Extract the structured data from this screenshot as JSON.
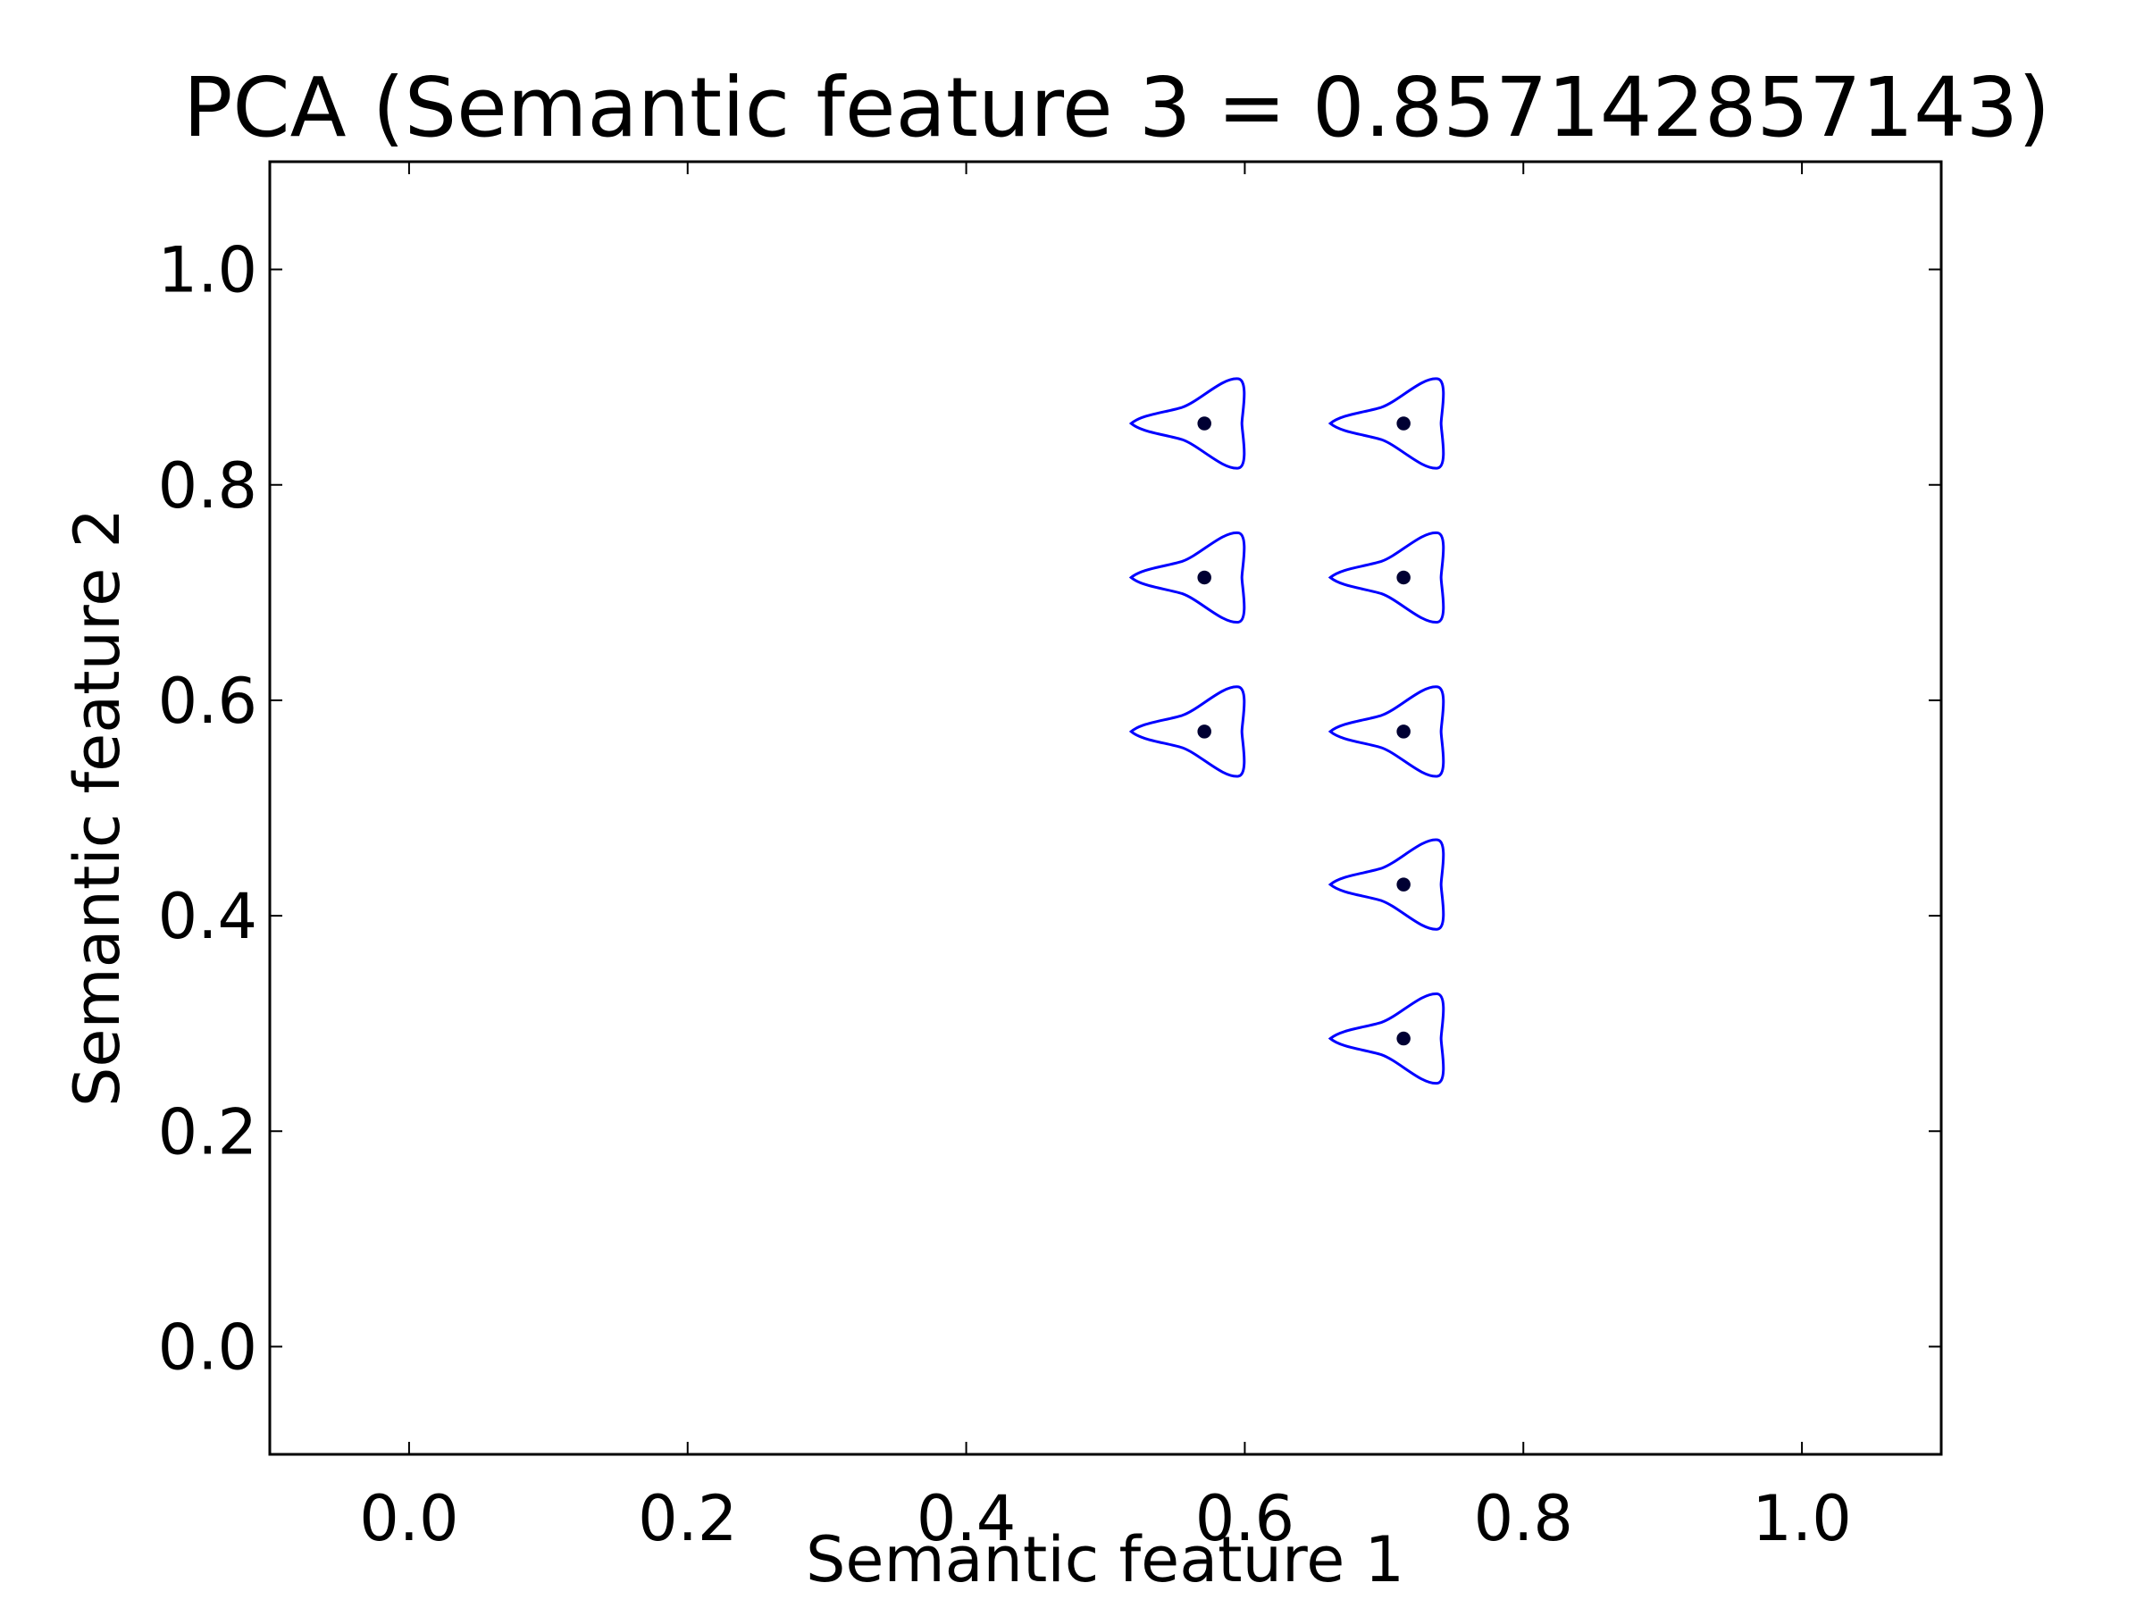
{
  "chart_data": {
    "type": "scatter",
    "title": "PCA (Semantic feature 3 = 0.857142857143)",
    "xlabel": "Semantic feature 1",
    "ylabel": "Semantic feature 2",
    "xlim": [
      -0.1,
      1.1
    ],
    "ylim": [
      -0.1,
      1.1
    ],
    "xticks": [
      0.0,
      0.2,
      0.4,
      0.6,
      0.8,
      1.0
    ],
    "yticks": [
      0.0,
      0.2,
      0.4,
      0.6,
      0.8,
      1.0
    ],
    "xtick_labels": [
      "0.0",
      "0.2",
      "0.4",
      "0.6",
      "0.8",
      "1.0"
    ],
    "ytick_labels": [
      "0.0",
      "0.2",
      "0.4",
      "0.6",
      "0.8",
      "1.0"
    ],
    "grid": false,
    "marker": "three-lobed glyph outline with center dot",
    "glyph_color": "#0000ff",
    "point_color": "#000033",
    "points": [
      {
        "x": 0.571,
        "y": 0.857
      },
      {
        "x": 0.714,
        "y": 0.857
      },
      {
        "x": 0.571,
        "y": 0.714
      },
      {
        "x": 0.714,
        "y": 0.714
      },
      {
        "x": 0.571,
        "y": 0.571
      },
      {
        "x": 0.714,
        "y": 0.571
      },
      {
        "x": 0.714,
        "y": 0.429
      },
      {
        "x": 0.714,
        "y": 0.286
      }
    ]
  }
}
